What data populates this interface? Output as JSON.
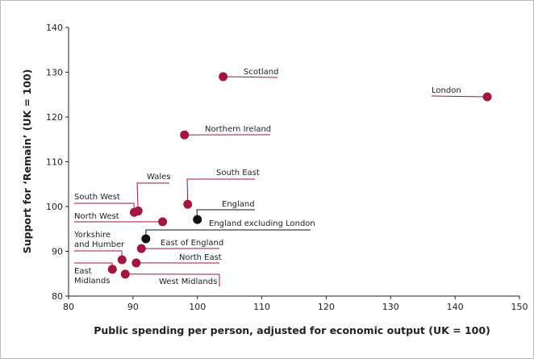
{
  "chart_data": {
    "type": "scatter",
    "xlabel": "Public spending per person, adjusted for economic output (UK = 100)",
    "ylabel": "Support for ‘Remain’ (UK = 100)",
    "labels": [
      "Scotland",
      "London",
      "Northern Ireland",
      "South East",
      "Wales",
      "South West",
      "North West",
      "England",
      "England excluding London",
      "East of England",
      "Yorkshire and Humber",
      "North East",
      "East Midlands",
      "West Midlands"
    ],
    "x": [
      104,
      145,
      98,
      98.5,
      90.8,
      90.2,
      94.6,
      100,
      92,
      91.3,
      88.3,
      90.5,
      86.8,
      88.8
    ],
    "values": [
      129,
      124.5,
      116,
      100.5,
      99,
      98.7,
      96.6,
      97.1,
      92.8,
      90.6,
      88.1,
      87.4,
      86,
      84.9
    ],
    "colors": [
      "#a3173f",
      "#a3173f",
      "#a3173f",
      "#a3173f",
      "#a3173f",
      "#a3173f",
      "#a3173f",
      "#111111",
      "#111111",
      "#a3173f",
      "#a3173f",
      "#a3173f",
      "#a3173f",
      "#a3173f"
    ],
    "xlim": [
      80,
      150
    ],
    "xticks": [
      80,
      90,
      100,
      110,
      120,
      130,
      140,
      150
    ],
    "ylim": [
      80,
      140
    ],
    "yticks": [
      80,
      90,
      100,
      110,
      120,
      130,
      140
    ]
  }
}
